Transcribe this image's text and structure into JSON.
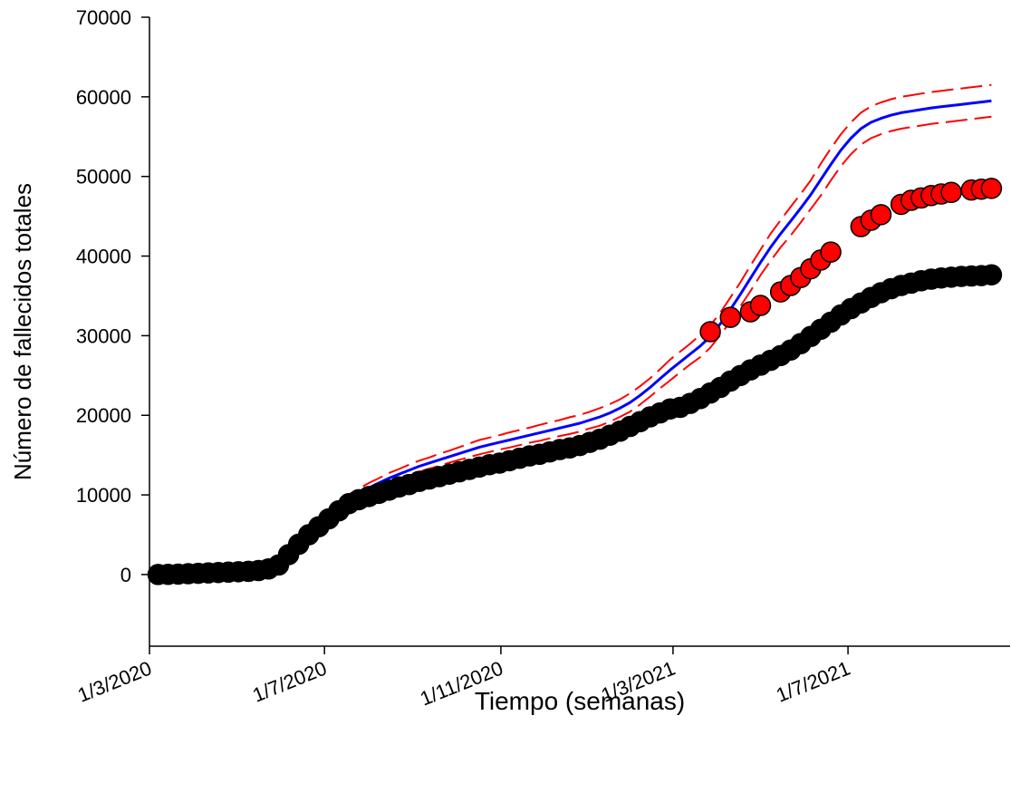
{
  "chart_data": {
    "type": "line",
    "xlabel": "Tiempo (semanas)",
    "ylabel": "Número de fallecidos totales",
    "x": [
      "2020-03-07",
      "2020-03-14",
      "2020-03-21",
      "2020-03-28",
      "2020-04-04",
      "2020-04-11",
      "2020-04-18",
      "2020-04-25",
      "2020-05-02",
      "2020-05-09",
      "2020-05-16",
      "2020-05-23",
      "2020-05-30",
      "2020-06-06",
      "2020-06-13",
      "2020-06-20",
      "2020-06-27",
      "2020-07-04",
      "2020-07-11",
      "2020-07-18",
      "2020-07-25",
      "2020-08-01",
      "2020-08-08",
      "2020-08-15",
      "2020-08-22",
      "2020-08-29",
      "2020-09-05",
      "2020-09-12",
      "2020-09-19",
      "2020-09-26",
      "2020-10-03",
      "2020-10-10",
      "2020-10-17",
      "2020-10-24",
      "2020-10-31",
      "2020-11-07",
      "2020-11-14",
      "2020-11-21",
      "2020-11-28",
      "2020-12-05",
      "2020-12-12",
      "2020-12-19",
      "2020-12-26",
      "2021-01-02",
      "2021-01-09",
      "2021-01-16",
      "2021-01-23",
      "2021-01-30",
      "2021-02-06",
      "2021-02-13",
      "2021-02-20",
      "2021-02-27",
      "2021-03-06",
      "2021-03-13",
      "2021-03-20",
      "2021-03-27",
      "2021-04-03",
      "2021-04-10",
      "2021-04-17",
      "2021-04-24",
      "2021-05-01",
      "2021-05-08",
      "2021-05-15",
      "2021-05-22",
      "2021-05-29",
      "2021-06-05",
      "2021-06-12",
      "2021-06-19",
      "2021-06-26",
      "2021-07-03",
      "2021-07-10",
      "2021-07-17",
      "2021-07-24",
      "2021-07-31",
      "2021-08-07",
      "2021-08-14",
      "2021-08-21",
      "2021-08-28",
      "2021-09-04",
      "2021-09-11",
      "2021-09-18",
      "2021-09-25",
      "2021-10-02",
      "2021-10-09"
    ],
    "series": [
      {
        "color": "#000000",
        "style": "markers",
        "values": [
          0,
          20,
          50,
          100,
          150,
          200,
          250,
          300,
          350,
          400,
          500,
          700,
          1200,
          2500,
          3800,
          5000,
          6000,
          7000,
          8000,
          8900,
          9400,
          9800,
          10200,
          10600,
          11000,
          11300,
          11700,
          12000,
          12300,
          12600,
          12900,
          13200,
          13500,
          13800,
          14000,
          14300,
          14600,
          14900,
          15100,
          15400,
          15700,
          15900,
          16200,
          16600,
          17000,
          17500,
          18000,
          18600,
          19200,
          19800,
          20300,
          20800,
          21000,
          21500,
          22100,
          22800,
          23500,
          24300,
          25000,
          25700,
          26300,
          26900,
          27500,
          28200,
          29000,
          29900,
          30800,
          31700,
          32600,
          33400,
          34100,
          34800,
          35400,
          35900,
          36300,
          36600,
          36900,
          37100,
          37250,
          37350,
          37450,
          37500,
          37550,
          37650
        ]
      },
      {
        "color": "#ff0000",
        "style": "markers",
        "values": [
          null,
          null,
          null,
          null,
          null,
          null,
          null,
          null,
          null,
          null,
          null,
          null,
          null,
          null,
          null,
          null,
          null,
          null,
          null,
          null,
          null,
          null,
          null,
          null,
          null,
          null,
          null,
          null,
          null,
          null,
          null,
          null,
          null,
          null,
          null,
          null,
          null,
          null,
          null,
          null,
          null,
          null,
          null,
          null,
          null,
          null,
          null,
          null,
          null,
          null,
          null,
          null,
          null,
          null,
          null,
          30500,
          null,
          32300,
          null,
          33000,
          33800,
          null,
          35500,
          36300,
          37300,
          38400,
          39500,
          40500,
          null,
          null,
          43700,
          44500,
          45200,
          null,
          46500,
          47000,
          47300,
          47600,
          47800,
          48000,
          null,
          48300,
          48400,
          48500
        ]
      },
      {
        "color": "#0000ff",
        "style": "solid",
        "values": [
          null,
          null,
          null,
          null,
          null,
          null,
          null,
          null,
          null,
          null,
          null,
          null,
          null,
          null,
          null,
          null,
          null,
          null,
          8600,
          9500,
          10200,
          10900,
          11500,
          12100,
          12600,
          13100,
          13600,
          14000,
          14400,
          14800,
          15200,
          15600,
          16000,
          16300,
          16600,
          16900,
          17200,
          17500,
          17800,
          18100,
          18400,
          18700,
          19000,
          19400,
          19800,
          20300,
          20900,
          21600,
          22500,
          23500,
          24600,
          25700,
          26700,
          27700,
          28700,
          29900,
          31500,
          33300,
          35200,
          37200,
          39200,
          41100,
          42800,
          44400,
          46000,
          47700,
          49600,
          51500,
          53300,
          54800,
          56000,
          56800,
          57300,
          57700,
          58000,
          58200,
          58400,
          58600,
          58750,
          58900,
          59050,
          59200,
          59350,
          59500
        ]
      },
      {
        "color": "#ff0000",
        "style": "dashed",
        "values": [
          null,
          null,
          null,
          null,
          null,
          null,
          null,
          null,
          null,
          null,
          null,
          null,
          null,
          null,
          null,
          null,
          null,
          null,
          9100,
          10050,
          10800,
          11500,
          12100,
          12750,
          13250,
          13800,
          14300,
          14700,
          15150,
          15550,
          16000,
          16450,
          16900,
          17200,
          17500,
          17850,
          18150,
          18450,
          18800,
          19100,
          19400,
          19750,
          20050,
          20450,
          20900,
          21400,
          22000,
          22750,
          23650,
          24650,
          25800,
          27000,
          28000,
          29000,
          30100,
          31300,
          32900,
          34800,
          36700,
          38800,
          40800,
          42800,
          44500,
          46200,
          47800,
          49500,
          51600,
          53500,
          55300,
          56800,
          58000,
          58800,
          59300,
          59700,
          60000,
          60200,
          60400,
          60600,
          60750,
          60900,
          61050,
          61200,
          61350,
          61500
        ]
      },
      {
        "color": "#ff0000",
        "style": "dashed",
        "values": [
          null,
          null,
          null,
          null,
          null,
          null,
          null,
          null,
          null,
          null,
          null,
          null,
          null,
          null,
          null,
          null,
          null,
          null,
          8100,
          8950,
          9600,
          10300,
          10900,
          11450,
          11950,
          12400,
          12900,
          13300,
          13650,
          14050,
          14400,
          14750,
          15100,
          15400,
          15700,
          15950,
          16250,
          16550,
          16800,
          17100,
          17400,
          17650,
          17950,
          18350,
          18700,
          19200,
          19800,
          20450,
          21350,
          22350,
          23400,
          24400,
          25400,
          26400,
          27300,
          28500,
          30100,
          31800,
          33700,
          35600,
          37600,
          39400,
          41100,
          42600,
          44200,
          45900,
          47600,
          49500,
          51300,
          52800,
          54000,
          54800,
          55300,
          55700,
          56000,
          56200,
          56400,
          56600,
          56750,
          56900,
          57050,
          57200,
          57350,
          57500
        ]
      }
    ],
    "xlim": [
      "2020-03-01",
      "2021-10-22"
    ],
    "xticks": [
      {
        "value": "2020-03-01",
        "label": "1/3/2020"
      },
      {
        "value": "2020-07-01",
        "label": "1/7/2020"
      },
      {
        "value": "2020-11-01",
        "label": "1/11/2020"
      },
      {
        "value": "2021-03-01",
        "label": "1/3/2021"
      },
      {
        "value": "2021-07-01",
        "label": "1/7/2021"
      }
    ],
    "ylim": [
      -9000,
      70000
    ],
    "yticks": [
      0,
      10000,
      20000,
      30000,
      40000,
      50000,
      60000,
      70000
    ],
    "grid": false
  }
}
